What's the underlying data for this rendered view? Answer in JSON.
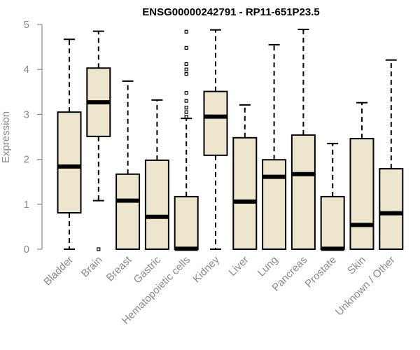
{
  "chart_data": {
    "type": "boxplot",
    "title": "ENSG00000242791 - RP11-651P23.5",
    "ylabel": "Expression",
    "xlabel": "",
    "ylim": [
      0,
      5
    ],
    "yticks": [
      0,
      1,
      2,
      3,
      4,
      5
    ],
    "grid": false,
    "box_fill": "#ede6cc",
    "box_stroke": "#000000",
    "axis_color": "#8a8a8a",
    "categories": [
      "Bladder",
      "Brain",
      "Breast",
      "Gastric",
      "Hematopoietic cells",
      "Kidney",
      "Liver",
      "Lung",
      "Pancreas",
      "Prostate",
      "Skin",
      "Unknown / Other"
    ],
    "boxes": [
      {
        "category": "Bladder",
        "whisker_low": 0,
        "q1": 0.81,
        "median": 1.84,
        "q3": 3.05,
        "whisker_high": 4.67,
        "outliers": []
      },
      {
        "category": "Brain",
        "whisker_low": 1.08,
        "q1": 2.51,
        "median": 3.27,
        "q3": 4.03,
        "whisker_high": 4.85,
        "outliers": [
          0
        ]
      },
      {
        "category": "Breast",
        "whisker_low": 0,
        "q1": 0,
        "median": 1.08,
        "q3": 1.67,
        "whisker_high": 3.74,
        "outliers": []
      },
      {
        "category": "Gastric",
        "whisker_low": 0,
        "q1": 0,
        "median": 0.72,
        "q3": 1.98,
        "whisker_high": 3.32,
        "outliers": []
      },
      {
        "category": "Hematopoietic cells",
        "whisker_low": 0,
        "q1": 0,
        "median": 0.01,
        "q3": 1.17,
        "whisker_high": 2.91,
        "outliers": [
          2.95,
          3.05,
          3.15,
          3.3,
          3.48,
          3.9,
          4.0,
          4.12,
          4.48,
          4.84
        ]
      },
      {
        "category": "Kidney",
        "whisker_low": 0,
        "q1": 2.09,
        "median": 2.95,
        "q3": 3.51,
        "whisker_high": 4.88,
        "outliers": []
      },
      {
        "category": "Liver",
        "whisker_low": 0,
        "q1": 0,
        "median": 1.06,
        "q3": 2.48,
        "whisker_high": 3.21,
        "outliers": []
      },
      {
        "category": "Lung",
        "whisker_low": 0,
        "q1": 0,
        "median": 1.61,
        "q3": 1.99,
        "whisker_high": 4.55,
        "outliers": []
      },
      {
        "category": "Pancreas",
        "whisker_low": 0,
        "q1": 0,
        "median": 1.67,
        "q3": 2.54,
        "whisker_high": 4.89,
        "outliers": []
      },
      {
        "category": "Prostate",
        "whisker_low": 0,
        "q1": 0,
        "median": 0.01,
        "q3": 1.17,
        "whisker_high": 2.35,
        "outliers": []
      },
      {
        "category": "Skin",
        "whisker_low": 0,
        "q1": 0,
        "median": 0.54,
        "q3": 2.46,
        "whisker_high": 3.26,
        "outliers": []
      },
      {
        "category": "Unknown / Other",
        "whisker_low": 0,
        "q1": 0,
        "median": 0.8,
        "q3": 1.79,
        "whisker_high": 4.21,
        "outliers": []
      }
    ]
  }
}
